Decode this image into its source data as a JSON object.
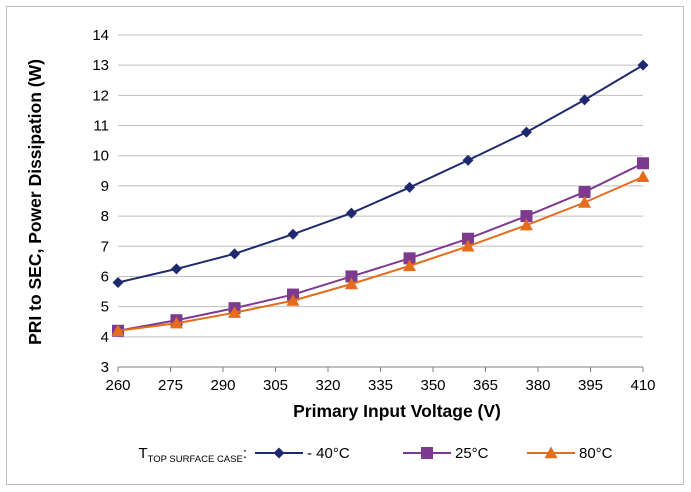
{
  "chart_data": {
    "type": "line",
    "xlabel": "Primary Input Voltage (V)",
    "ylabel": "PRI to SEC, Power Dissipation (W)",
    "x": [
      260,
      276.7,
      293.3,
      310,
      326.7,
      343.3,
      360,
      376.7,
      393.3,
      410
    ],
    "xticks": [
      260,
      275,
      290,
      305,
      320,
      335,
      350,
      365,
      380,
      395,
      410
    ],
    "xlim": [
      260,
      410
    ],
    "ylim": [
      3,
      14
    ],
    "yticks": [
      3,
      4,
      5,
      6,
      7,
      8,
      9,
      10,
      11,
      12,
      13,
      14
    ],
    "grid": true,
    "legend": {
      "title_main": "T",
      "title_sub": "TOP SURFACE CASE",
      "title_suffix": ":",
      "placement": "bottom"
    },
    "series": [
      {
        "name": "- 40°C",
        "color": "#1f2a6e",
        "marker": "diamond",
        "values": [
          5.8,
          6.25,
          6.75,
          7.4,
          8.1,
          8.95,
          9.85,
          10.78,
          11.85,
          13.0
        ]
      },
      {
        "name": "25°C",
        "color": "#7e3a8e",
        "marker": "square",
        "values": [
          4.2,
          4.55,
          4.95,
          5.4,
          6.0,
          6.6,
          7.25,
          8.0,
          8.8,
          9.75
        ]
      },
      {
        "name": "80°C",
        "color": "#e36c1d",
        "marker": "triangle",
        "values": [
          4.2,
          4.45,
          4.8,
          5.2,
          5.75,
          6.35,
          7.0,
          7.7,
          8.45,
          9.3
        ]
      }
    ]
  }
}
